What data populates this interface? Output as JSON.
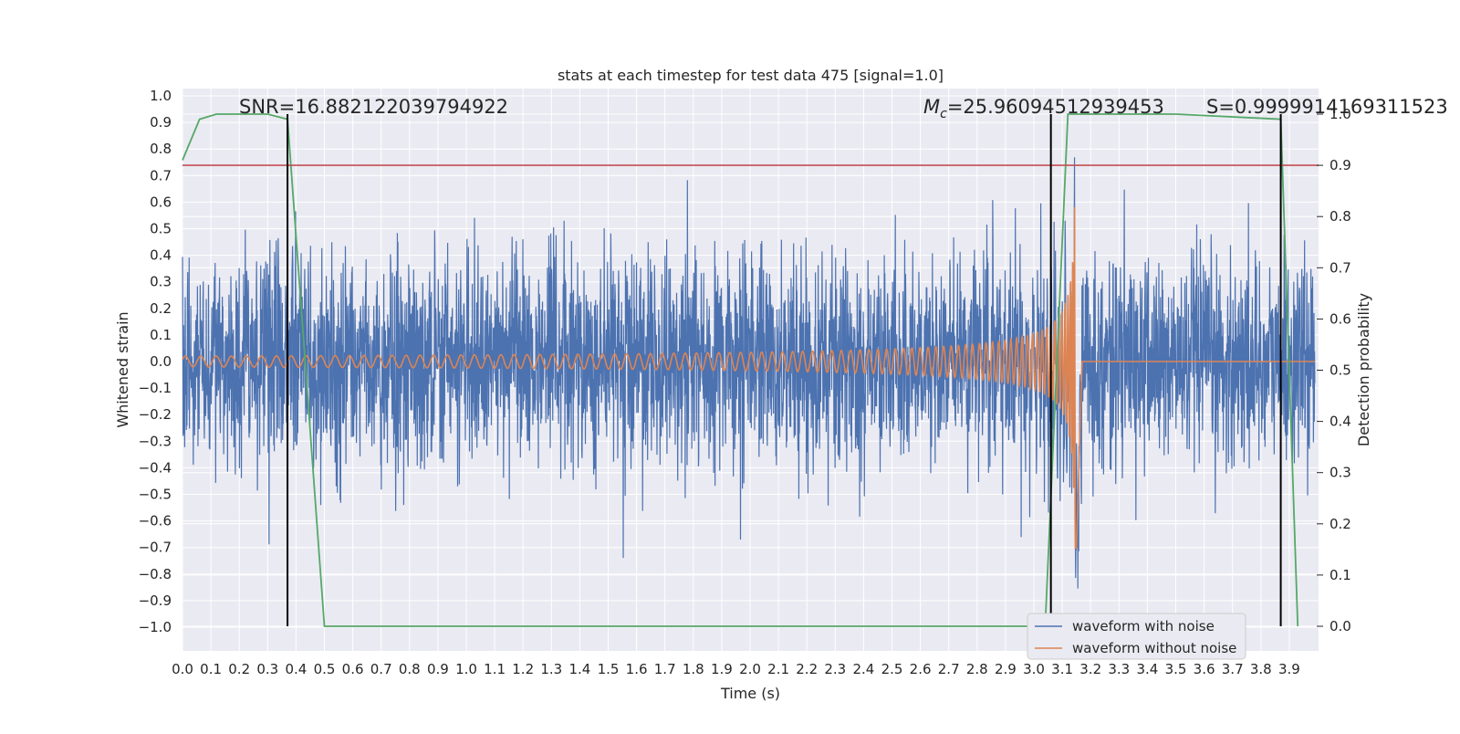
{
  "chart_data": {
    "type": "line",
    "title": "stats at each timestep for test data 475 [signal=1.0]",
    "xlabel": "Time (s)",
    "ylabel_left": "Whitened strain",
    "ylabel_right": "Detection probability",
    "xlim": [
      0.0,
      4.0
    ],
    "ylim_left": [
      -1.09,
      1.02
    ],
    "ylim_right": [
      -0.05,
      1.02
    ],
    "x_ticks": [
      "0.0",
      "0.1",
      "0.2",
      "0.3",
      "0.4",
      "0.5",
      "0.6",
      "0.7",
      "0.8",
      "0.9",
      "1.0",
      "1.1",
      "1.2",
      "1.3",
      "1.4",
      "1.5",
      "1.6",
      "1.7",
      "1.8",
      "1.9",
      "2.0",
      "2.1",
      "2.2",
      "2.3",
      "2.4",
      "2.5",
      "2.6",
      "2.7",
      "2.8",
      "2.9",
      "3.0",
      "3.1",
      "3.2",
      "3.3",
      "3.4",
      "3.5",
      "3.6",
      "3.7",
      "3.8",
      "3.9"
    ],
    "y_ticks_left": [
      "1.0",
      "0.9",
      "0.8",
      "0.7",
      "0.6",
      "0.5",
      "0.4",
      "0.3",
      "0.2",
      "0.1",
      "0.0",
      "−0.1",
      "−0.2",
      "−0.3",
      "−0.4",
      "−0.5",
      "−0.6",
      "−0.7",
      "−0.8",
      "−0.9",
      "−1.0"
    ],
    "y_ticks_right": [
      "1.0",
      "0.9",
      "0.8",
      "0.7",
      "0.6",
      "0.5",
      "0.4",
      "0.3",
      "0.2",
      "0.1",
      "0.0"
    ],
    "annotations": {
      "snr": "SNR=16.882122039794922",
      "mc_symbol": "M",
      "mc_sub": "c",
      "mc_value": "=25.96094512939453",
      "s": "S=0.9999914169311523"
    },
    "series": [
      {
        "name": "waveform with noise",
        "axis": "left",
        "color": "#4c72b0",
        "description": "whitened strain, random noise amplitude ~0.3 with peaks to ±1.0"
      },
      {
        "name": "waveform without noise",
        "axis": "left",
        "color": "#dd8452",
        "description": "chirp signal, amplitude 0.02 growing to 0.83 at merger t≈3.15 s, flat after"
      },
      {
        "name": "detection probability",
        "axis": "right",
        "color": "#55a868",
        "x": [
          0.0,
          0.06,
          0.12,
          0.2,
          0.3,
          0.37,
          0.5,
          1.0,
          2.0,
          2.6,
          3.0,
          3.04,
          3.12,
          3.2,
          3.5,
          3.87,
          3.93
        ],
        "y": [
          0.91,
          0.99,
          1.0,
          1.0,
          1.0,
          0.99,
          0.0,
          0.0,
          0.0,
          0.0,
          0.0,
          0.0,
          1.0,
          1.0,
          1.0,
          0.99,
          0.0
        ]
      }
    ],
    "threshold": {
      "axis": "right",
      "value": 0.9,
      "color": "#c44e52"
    },
    "event_markers": {
      "x": [
        0.37,
        3.06,
        3.87
      ],
      "color": "#000000"
    },
    "legend_location": "lower-right"
  }
}
